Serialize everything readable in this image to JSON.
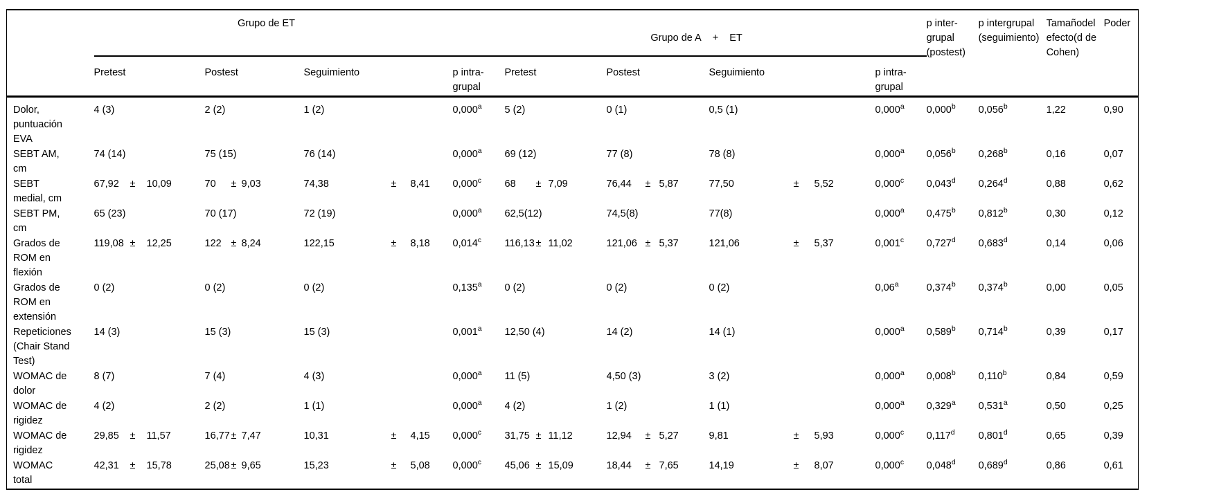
{
  "table": {
    "groups": [
      {
        "label": "Grupo de ET",
        "sub_headers": [
          "Pretest",
          "Postest",
          "Seguimiento",
          "p intra-\ngrupal"
        ]
      },
      {
        "parts": [
          "Grupo de A",
          "+",
          "ET"
        ],
        "sub_headers": [
          "Pretest",
          "Postest",
          "Seguimiento",
          "p intra-\ngrupal"
        ]
      }
    ],
    "outer_headers": [
      "p inter-\ngrupal\n(postest)",
      "p intergrupal\n(seguimiento)",
      "Tamañodel\nefecto(d de\nCohen)",
      "Poder"
    ],
    "rows": [
      {
        "label": "Dolor,\npuntuación\nEVA",
        "cells": [
          "4 (3)",
          "2 (2)",
          "1 (2)",
          "0,000^a",
          "5 (2)",
          "0 (1)",
          "0,5 (1)",
          "0,000^a",
          "0,000^b",
          "0,056^b",
          "1,22",
          "0,90"
        ]
      },
      {
        "label": "SEBT AM,\ncm",
        "cells": [
          "74 (14)",
          "75 (15)",
          "76 (14)",
          "0,000^a",
          "69 (12)",
          "77 (8)",
          "78 (8)",
          "0,000^a",
          "0,056^b",
          "0,268^b",
          "0,16",
          "0,07"
        ]
      },
      {
        "label": "SEBT\nmedial, cm",
        "cells": [
          "67,92 ± 10,09",
          "70 ± 9,03",
          "74,38 ± 8,41",
          "0,000^c",
          "68 ± 7,09",
          "76,44 ± 5,87",
          "77,50 ± 5,52",
          "0,000^c",
          "0,043^d",
          "0,264^d",
          "0,88",
          "0,62"
        ]
      },
      {
        "label": "SEBT PM,\ncm",
        "cells": [
          "65 (23)",
          "70 (17)",
          "72 (19)",
          "0,000^a",
          "62,5(12)",
          "74,5(8)",
          "77(8)",
          "0,000^a",
          "0,475^b",
          "0,812^b",
          "0,30",
          "0,12"
        ]
      },
      {
        "label": "Grados de\nROM en\nflexión",
        "cells": [
          "119,08 ± 12,25",
          "122 ± 8,24",
          "122,15 ± 8,18",
          "0,014^c",
          "116,13 ± 11,02",
          "121,06 ± 5,37",
          "121,06 ± 5,37",
          "0,001^c",
          "0,727^d",
          "0,683^d",
          "0,14",
          "0,06"
        ]
      },
      {
        "label": "Grados de\nROM en\nextensión",
        "cells": [
          "0 (2)",
          "0 (2)",
          "0 (2)",
          "0,135^a",
          "0 (2)",
          "0 (2)",
          "0 (2)",
          "0,06^a",
          "0,374^b",
          "0,374^b",
          "0,00",
          "0,05"
        ]
      },
      {
        "label": "Repeticiones\n(Chair Stand\nTest)",
        "cells": [
          "14 (3)",
          "15 (3)",
          "15 (3)",
          "0,001^a",
          "12,50 (4)",
          "14 (2)",
          "14 (1)",
          "0,000^a",
          "0,589^b",
          "0,714^b",
          "0,39",
          "0,17"
        ]
      },
      {
        "label": "WOMAC de\ndolor",
        "cells": [
          "8 (7)",
          "7 (4)",
          "4 (3)",
          "0,000^a",
          "11 (5)",
          "4,50 (3)",
          "3 (2)",
          "0,000^a",
          "0,008^b",
          "0,110^b",
          "0,84",
          "0,59"
        ]
      },
      {
        "label": "WOMAC de\nrigidez",
        "cells": [
          "4 (2)",
          "2 (2)",
          "1 (1)",
          "0,000^a",
          "4 (2)",
          "1 (2)",
          "1 (1)",
          "0,000^a",
          "0,329^a",
          "0,531^a",
          "0,50",
          "0,25"
        ]
      },
      {
        "label": "WOMAC de\nrigidez",
        "cells": [
          "29,85 ± 11,57",
          "16,77 ± 7,47",
          "10,31 ± 4,15",
          "0,000^c",
          "31,75 ± 11,12",
          "12,94 ± 5,27",
          "9,81 ± 5,93",
          "0,000^c",
          "0,117^d",
          "0,801^d",
          "0,65",
          "0,39"
        ]
      },
      {
        "label": "WOMAC\ntotal",
        "cells": [
          "42,31 ± 15,78",
          "25,08 ± 9,65",
          "15,23 ± 5,08",
          "0,000^c",
          "45,06 ± 15,09",
          "18,44 ± 7,65",
          "14,19 ± 8,07",
          "0,000^c",
          "0,048^d",
          "0,689^d",
          "0,86",
          "0,61"
        ]
      }
    ]
  }
}
